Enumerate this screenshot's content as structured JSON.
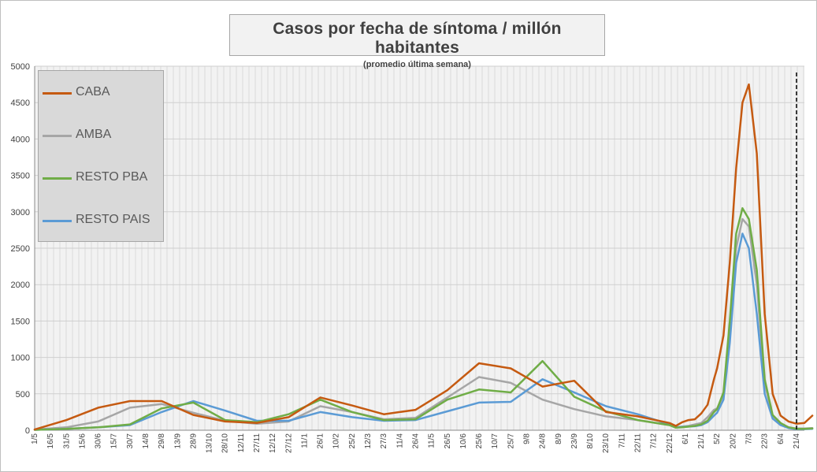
{
  "chart_data": {
    "type": "line",
    "title": "Casos por fecha de síntoma / millón habitantes",
    "subtitle": "(promedio última semana)",
    "xlabel": "",
    "ylabel": "",
    "ylim": [
      0,
      5000
    ],
    "yticks": [
      0,
      500,
      1000,
      1500,
      2000,
      2500,
      3000,
      3500,
      4000,
      4500,
      5000
    ],
    "x_tick_labels": [
      "1/5",
      "16/5",
      "31/5",
      "15/6",
      "30/6",
      "15/7",
      "30/7",
      "14/8",
      "29/8",
      "13/9",
      "28/9",
      "13/10",
      "28/10",
      "12/11",
      "27/11",
      "12/12",
      "27/12",
      "11/1",
      "26/1",
      "10/2",
      "25/2",
      "12/3",
      "27/3",
      "11/4",
      "26/4",
      "11/5",
      "26/5",
      "10/6",
      "25/6",
      "10/7",
      "25/7",
      "9/8",
      "24/8",
      "8/9",
      "23/9",
      "8/10",
      "23/10",
      "7/11",
      "22/11",
      "7/12",
      "22/12",
      "6/1",
      "21/1",
      "5/2",
      "20/2",
      "7/3",
      "22/3",
      "6/4",
      "21/4"
    ],
    "grid": true,
    "legend_position": "top-left",
    "annotations": [
      {
        "type": "dashed-vertical-line",
        "x": "21/4 (after)"
      }
    ],
    "x": [
      0,
      2,
      4,
      6,
      8,
      10,
      12,
      14,
      16,
      18,
      20,
      22,
      24,
      26,
      28,
      30,
      32,
      34,
      36,
      38,
      40,
      40.4,
      40.8,
      41.2,
      41.6,
      42,
      42.4,
      42.8,
      43,
      43.4,
      43.8,
      44.2,
      44.6,
      45,
      45.5,
      46,
      46.5,
      47,
      47.5,
      48,
      48.5,
      49
    ],
    "series": [
      {
        "name": "CABA",
        "color": "#c55a11",
        "values": [
          10,
          140,
          310,
          400,
          400,
          210,
          120,
          100,
          180,
          450,
          340,
          220,
          280,
          550,
          920,
          850,
          600,
          680,
          250,
          190,
          100,
          60,
          110,
          140,
          150,
          230,
          350,
          700,
          850,
          1300,
          2300,
          3600,
          4500,
          4750,
          3800,
          1600,
          500,
          200,
          120,
          90,
          100,
          200
        ]
      },
      {
        "name": "AMBA",
        "color": "#a6a6a6",
        "values": [
          10,
          40,
          120,
          310,
          360,
          240,
          130,
          90,
          120,
          330,
          250,
          150,
          170,
          450,
          730,
          650,
          420,
          290,
          190,
          140,
          70,
          40,
          50,
          60,
          80,
          100,
          180,
          280,
          300,
          480,
          1300,
          2500,
          2900,
          2800,
          2000,
          650,
          190,
          90,
          40,
          25,
          25,
          30
        ]
      },
      {
        "name": "RESTO PBA",
        "color": "#70ad47",
        "values": [
          5,
          20,
          40,
          80,
          300,
          380,
          140,
          110,
          220,
          420,
          250,
          140,
          150,
          420,
          560,
          520,
          950,
          460,
          260,
          140,
          70,
          35,
          40,
          50,
          60,
          80,
          130,
          250,
          290,
          520,
          1500,
          2700,
          3050,
          2900,
          2200,
          700,
          210,
          100,
          40,
          20,
          20,
          25
        ]
      },
      {
        "name": "RESTO PAIS",
        "color": "#5b9bd5",
        "values": [
          5,
          20,
          40,
          70,
          250,
          400,
          270,
          130,
          130,
          250,
          180,
          130,
          140,
          260,
          380,
          390,
          700,
          520,
          330,
          220,
          80,
          40,
          45,
          50,
          55,
          70,
          110,
          200,
          240,
          420,
          1200,
          2300,
          2700,
          2500,
          1600,
          500,
          160,
          70,
          30,
          15,
          15,
          20
        ]
      }
    ]
  }
}
